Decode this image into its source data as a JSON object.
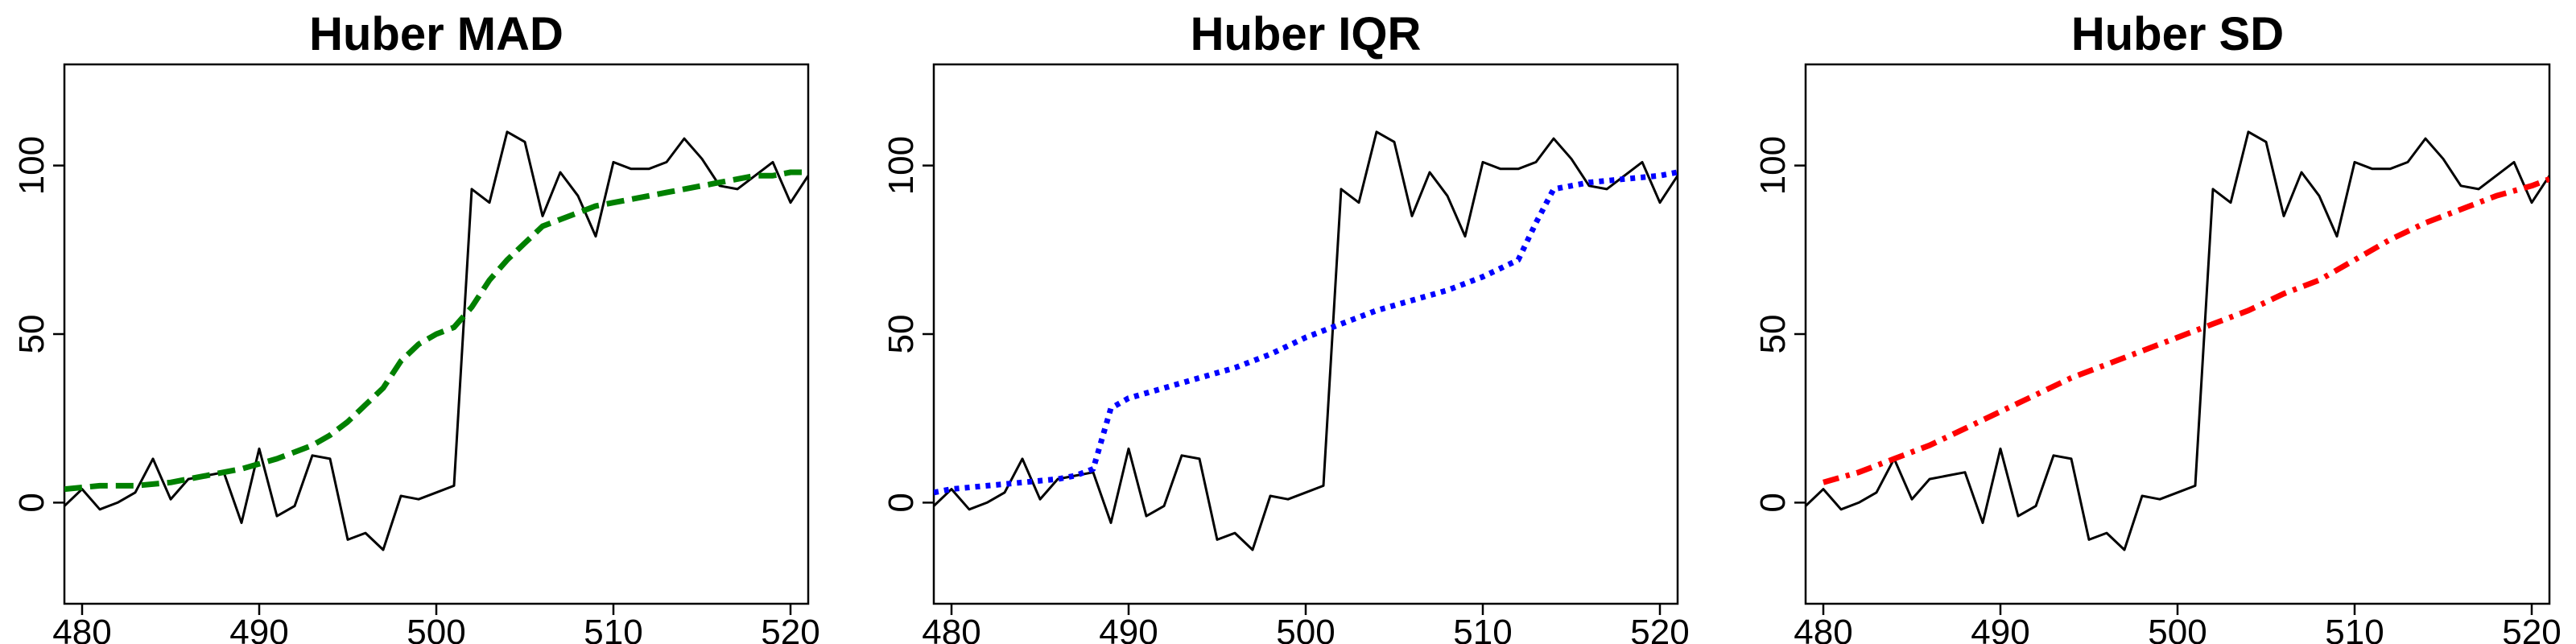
{
  "chart_data": [
    {
      "type": "line",
      "title": "Huber MAD",
      "xlim": [
        479,
        521
      ],
      "ylim": [
        -30,
        130
      ],
      "x_ticks": [
        480,
        490,
        500,
        510,
        520
      ],
      "y_ticks": [
        0,
        50,
        100
      ],
      "grid": false,
      "series": [
        {
          "role": "observed",
          "color": "#000000",
          "line_style": "solid",
          "x": [
            479,
            480,
            481,
            482,
            483,
            484,
            485,
            486,
            487,
            488,
            489,
            490,
            491,
            492,
            493,
            494,
            495,
            496,
            497,
            498,
            499,
            500,
            501,
            502,
            503,
            504,
            505,
            506,
            507,
            508,
            509,
            510,
            511,
            512,
            513,
            514,
            515,
            516,
            517,
            518,
            519,
            520,
            521
          ],
          "y": [
            -1,
            4,
            -2,
            0,
            3,
            13,
            1,
            7,
            8,
            9,
            -6,
            16,
            -4,
            -1,
            14,
            13,
            -11,
            -9,
            -14,
            2,
            1,
            3,
            5,
            93,
            89,
            110,
            107,
            85,
            98,
            91,
            79,
            101,
            99,
            99,
            101,
            108,
            102,
            94,
            93,
            97,
            101,
            89,
            97
          ]
        },
        {
          "role": "fitted",
          "color": "#008000",
          "line_style": "dashed",
          "x": [
            479,
            481,
            483,
            485,
            487,
            489,
            491,
            493,
            494,
            495,
            496,
            497,
            498,
            499,
            500,
            501,
            502,
            503,
            504,
            505,
            506,
            507,
            508,
            509,
            510,
            511,
            512,
            513,
            514,
            515,
            516,
            517,
            518,
            519,
            520,
            521
          ],
          "y": [
            4,
            5,
            5,
            6,
            8,
            10,
            13,
            17,
            20,
            24,
            29,
            34,
            42,
            47,
            50,
            52,
            58,
            66,
            72,
            77,
            82,
            84,
            86,
            88,
            89,
            90,
            91,
            92,
            93,
            94,
            95,
            96,
            97,
            97,
            98,
            98
          ]
        }
      ]
    },
    {
      "type": "line",
      "title": "Huber IQR",
      "xlim": [
        479,
        521
      ],
      "ylim": [
        -30,
        130
      ],
      "x_ticks": [
        480,
        490,
        500,
        510,
        520
      ],
      "y_ticks": [
        0,
        50,
        100
      ],
      "grid": false,
      "series": [
        {
          "role": "observed",
          "color": "#000000",
          "line_style": "solid",
          "x": [
            479,
            480,
            481,
            482,
            483,
            484,
            485,
            486,
            487,
            488,
            489,
            490,
            491,
            492,
            493,
            494,
            495,
            496,
            497,
            498,
            499,
            500,
            501,
            502,
            503,
            504,
            505,
            506,
            507,
            508,
            509,
            510,
            511,
            512,
            513,
            514,
            515,
            516,
            517,
            518,
            519,
            520,
            521
          ],
          "y": [
            -1,
            4,
            -2,
            0,
            3,
            13,
            1,
            7,
            8,
            9,
            -6,
            16,
            -4,
            -1,
            14,
            13,
            -11,
            -9,
            -14,
            2,
            1,
            3,
            5,
            93,
            89,
            110,
            107,
            85,
            98,
            91,
            79,
            101,
            99,
            99,
            101,
            108,
            102,
            94,
            93,
            97,
            101,
            89,
            97
          ]
        },
        {
          "role": "fitted",
          "color": "#0000ff",
          "line_style": "dotted",
          "x": [
            479,
            480,
            482,
            484,
            486,
            487,
            488,
            489,
            490,
            492,
            494,
            496,
            498,
            500,
            502,
            504,
            506,
            508,
            510,
            512,
            513,
            514,
            515,
            516,
            518,
            520,
            521
          ],
          "y": [
            3,
            4,
            5,
            6,
            7,
            8,
            10,
            28,
            31,
            34,
            37,
            40,
            44,
            49,
            53,
            57,
            60,
            63,
            67,
            72,
            83,
            93,
            94,
            95,
            96,
            97,
            98
          ]
        }
      ]
    },
    {
      "type": "line",
      "title": "Huber SD",
      "xlim": [
        479,
        521
      ],
      "ylim": [
        -30,
        130
      ],
      "x_ticks": [
        480,
        490,
        500,
        510,
        520
      ],
      "y_ticks": [
        0,
        50,
        100
      ],
      "grid": false,
      "series": [
        {
          "role": "observed",
          "color": "#000000",
          "line_style": "solid",
          "x": [
            479,
            480,
            481,
            482,
            483,
            484,
            485,
            486,
            487,
            488,
            489,
            490,
            491,
            492,
            493,
            494,
            495,
            496,
            497,
            498,
            499,
            500,
            501,
            502,
            503,
            504,
            505,
            506,
            507,
            508,
            509,
            510,
            511,
            512,
            513,
            514,
            515,
            516,
            517,
            518,
            519,
            520,
            521
          ],
          "y": [
            -1,
            4,
            -2,
            0,
            3,
            13,
            1,
            7,
            8,
            9,
            -6,
            16,
            -4,
            -1,
            14,
            13,
            -11,
            -9,
            -14,
            2,
            1,
            3,
            5,
            93,
            89,
            110,
            107,
            85,
            98,
            91,
            79,
            101,
            99,
            99,
            101,
            108,
            102,
            94,
            93,
            97,
            101,
            89,
            97
          ]
        },
        {
          "role": "fitted",
          "color": "#ff0000",
          "line_style": "dashdot",
          "x": [
            480,
            482,
            484,
            486,
            488,
            490,
            492,
            494,
            496,
            498,
            500,
            502,
            504,
            506,
            508,
            510,
            512,
            514,
            516,
            518,
            520,
            521
          ],
          "y": [
            6,
            9,
            13,
            17,
            22,
            27,
            32,
            37,
            41,
            45,
            49,
            53,
            57,
            62,
            66,
            72,
            78,
            83,
            87,
            91,
            94,
            96
          ]
        }
      ]
    }
  ]
}
